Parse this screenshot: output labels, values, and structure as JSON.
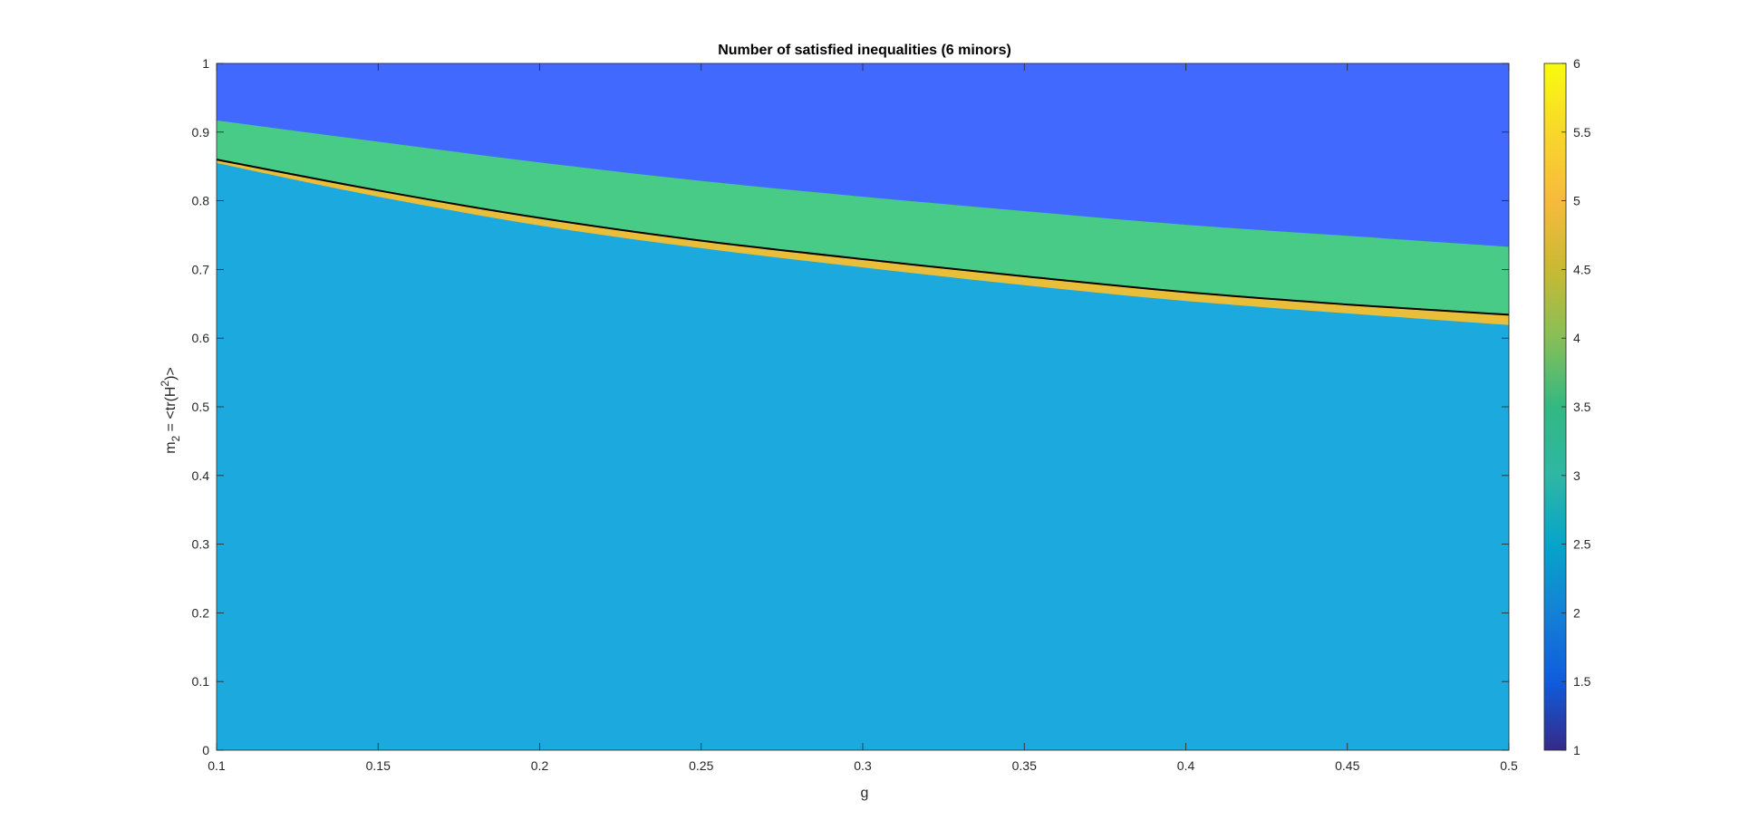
{
  "chart_data": {
    "type": "heatmap",
    "title": "Number of satisfied inequalities (6 minors)",
    "xlabel": "g",
    "ylabel": {
      "base": "m",
      "subscript": "2",
      "eq": " = <tr(H",
      "superscript": "2",
      "close": ")>"
    },
    "xlim": [
      0.1,
      0.5
    ],
    "ylim": [
      0,
      1
    ],
    "xticks": [
      "0.1",
      "0.15",
      "0.2",
      "0.25",
      "0.3",
      "0.35",
      "0.4",
      "0.45",
      "0.5"
    ],
    "yticks": [
      "0",
      "0.1",
      "0.2",
      "0.3",
      "0.4",
      "0.5",
      "0.6",
      "0.7",
      "0.8",
      "0.9",
      "1"
    ],
    "colorbar": {
      "range": [
        1,
        6
      ],
      "ticks": [
        "1",
        "1.5",
        "2",
        "2.5",
        "3",
        "3.5",
        "4",
        "4.5",
        "5",
        "5.5",
        "6"
      ],
      "colormap": "parula"
    },
    "regions": [
      {
        "value": 3,
        "color": "#1CA9DE",
        "description_key": "lower region"
      },
      {
        "value": 5,
        "color": "#E8BE3A",
        "description_key": "thin band"
      },
      {
        "value": 4,
        "color": "#47CB86",
        "description_key": "middle band"
      },
      {
        "value": 2,
        "color": "#4269FE",
        "description_key": "upper region"
      }
    ],
    "boundaries": {
      "g": [
        0.1,
        0.15,
        0.2,
        0.25,
        0.3,
        0.35,
        0.4,
        0.45,
        0.5
      ],
      "lower_3_to_5": [
        0.855,
        0.806,
        0.764,
        0.731,
        0.703,
        0.677,
        0.654,
        0.636,
        0.619
      ],
      "curve": [
        0.86,
        0.815,
        0.775,
        0.742,
        0.715,
        0.69,
        0.667,
        0.649,
        0.634
      ],
      "upper_4_to_2": [
        0.917,
        0.886,
        0.856,
        0.829,
        0.806,
        0.785,
        0.765,
        0.749,
        0.733
      ]
    },
    "curve_color": "#000000",
    "grid": false,
    "legend": "none"
  }
}
